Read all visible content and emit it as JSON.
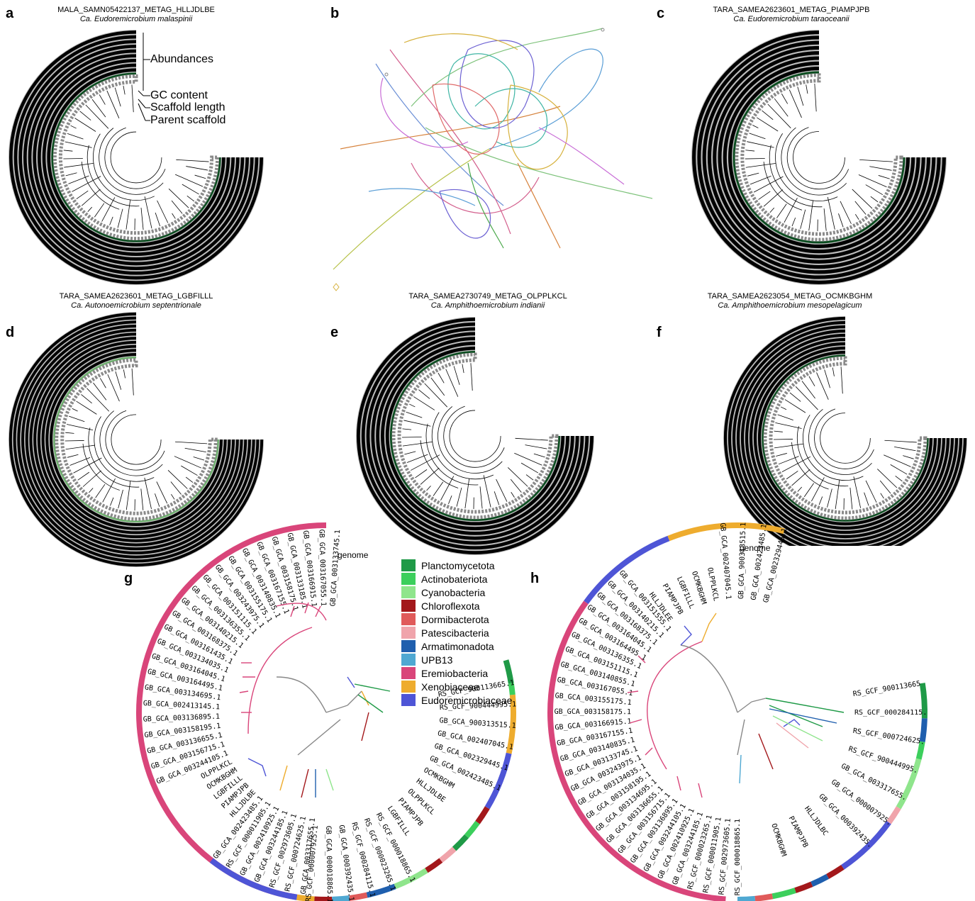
{
  "panels": {
    "a": {
      "label": "a",
      "sample": "MALA_SAMN05422137_METAG_HLLJDLBE",
      "organism": "Ca. Eudoremicrobium malaspinii"
    },
    "b": {
      "label": "b"
    },
    "c": {
      "label": "c",
      "sample": "TARA_SAMEA2623601_METAG_PIAMPJPB",
      "organism": "Ca. Eudoremicrobium taraoceanii"
    },
    "d": {
      "label": "d",
      "sample": "TARA_SAMEA2623601_METAG_LGBFILLL",
      "organism": "Ca. Autonoemicrobium septentrionale"
    },
    "e": {
      "label": "e",
      "sample": "TARA_SAMEA2730749_METAG_OLPPLKCL",
      "organism": "Ca. Amphithoemicrobium indianii"
    },
    "f": {
      "label": "f",
      "sample": "TARA_SAMEA2623054_METAG_OCMKBGHM",
      "organism": "Ca. Amphithoemicrobium mesopelagicum"
    },
    "g": {
      "label": "g"
    },
    "h": {
      "label": "h"
    }
  },
  "annotations": {
    "abundances": "Abundances",
    "gc": "GC content",
    "scaffold_length": "Scaffold length",
    "parent_scaffold": "Parent scaffold",
    "genome": "genome"
  },
  "legend": [
    {
      "name": "Planctomycetota",
      "color": "#1f9a47"
    },
    {
      "name": "Actinobateriota",
      "color": "#3ccf5c"
    },
    {
      "name": "Cyanobacteria",
      "color": "#8fe58c"
    },
    {
      "name": "Chloroflexota",
      "color": "#a3181b"
    },
    {
      "name": "Dormibacterota",
      "color": "#e05a5a"
    },
    {
      "name": "Patescibacteria",
      "color": "#f0a4ab"
    },
    {
      "name": "Armatimonadota",
      "color": "#1f5fae"
    },
    {
      "name": "UPB13",
      "color": "#4fa8d2"
    },
    {
      "name": "Eremiobacteria",
      "color": "#d9457a"
    },
    {
      "name": "Xenobiaceae",
      "color": "#eeac2e"
    },
    {
      "name": "Eudoremicrobiaceae",
      "color": "#4e55d6"
    }
  ],
  "tree_g": {
    "left_tips": [
      "GB_GCA_003133745.1",
      "GB_GCA_003167055.1",
      "GB_GCA_003166915.1",
      "GB_GCA_003133185.1",
      "GB_GCA_003158175.1",
      "GB_GCA_003167155.1",
      "GB_GCA_003140835.1",
      "GB_GCA_003155175.1",
      "GB_GCA_003243975.1",
      "GB_GCA_003151115.1",
      "GB_GCA_003136355.1",
      "GB_GCA_003140215.1",
      "GB_GCA_003168375.1",
      "GB_GCA_003161435.1",
      "GB_GCA_003134035.1",
      "GB_GCA_003164045.1",
      "GB_GCA_003164495.1",
      "GB_GCA_003134695.1",
      "GB_GCA_002413145.1",
      "GB_GCA_003136895.1",
      "GB_GCA_003158195.1",
      "GB_GCA_003136655.1",
      "GB_GCA_003156715.1",
      "GB_GCA_003244105.1",
      "OLPPLKCL",
      "OCMKBGHM",
      "LGBFILLL",
      "PIAMPJPB",
      "HLLJDLBE",
      "GB_GCA_002423485.1",
      "RS_GCF_000011905.1",
      "GB_GCA_002410925.1",
      "GB_GCA_003244185.1",
      "RS_GCF_002973605.1",
      "RS_GCF_000724625.1",
      "GB_GCA_003317655.1"
    ],
    "right_tips": [
      "RS_GCF_900113665.1",
      "RS_GCF_900444995.1",
      "GB_GCA_900313515.1",
      "GB_GCA_002407045.1",
      "GB_GCA_002329445.1",
      "GB_GCA_002423485.1",
      "OCMKBGHM",
      "HLLJDLBE",
      "OLPPLKCL",
      "PIAMPJPB",
      "LGBFILLL",
      "RS_GCF_000018865.1",
      "RS_GCF_000023265.1",
      "RS_GCF_000284115.1",
      "GB_GCA_000392435.1",
      "GB_GCA_000018865.1",
      "RS_GCF_000007925.1"
    ]
  },
  "tree_h": {
    "left_tips": [
      "GB_GCA_003151555.1",
      "GB_GCA_003140215.1",
      "GB_GCA_003168375.1",
      "GB_GCA_003164045.1",
      "GB_GCA_003164495.1",
      "GB_GCA_003136355.1",
      "GB_GCA_003151115.1",
      "GB_GCA_003140855.1",
      "GB_GCA_003167055.1",
      "GB_GCA_003155175.1",
      "GB_GCA_003158175.1",
      "GB_GCA_003166915.1",
      "GB_GCA_003167155.1",
      "GB_GCA_003140835.1",
      "GB_GCA_003133745.1",
      "GB_GCA_003243975.1",
      "GB_GCA_003134035.1",
      "GB_GCA_003158195.1",
      "GB_GCA_003134695.1",
      "GB_GCA_003136655.1",
      "GB_GCA_003156715.1",
      "GB_GCA_003136895.1",
      "GB_GCA_003244105.1",
      "GB_GCA_002410925.1",
      "GB_GCA_003244185.1",
      "RS_GCF_000023265.1",
      "RS_GCF_000011905.1",
      "RS_GCF_002973605.1",
      "RS_GCF_000018865.1"
    ],
    "top_tips": [
      "GB_GCA_002329445.1",
      "GB_GCA_002423485.1",
      "GB_GCA_900313515.1",
      "GB_GCA_002407045.1",
      "OLPPLKCL",
      "OCMKBGHM",
      "LGBFILLL",
      "PIAMPJPB",
      "HLLJDLEE"
    ],
    "right_tips": [
      "RS_GCF_900113665",
      "RS_GCF_000284115.",
      "RS_GCF_000724625.",
      "RS_GCF_900444995.",
      "GB_GCA_003317655.",
      "GB_GCA_000007925.",
      "GB_GCA_000392435.",
      "HLLJDLBC",
      "PIAMPJPB",
      "OCMKBGHM"
    ]
  }
}
